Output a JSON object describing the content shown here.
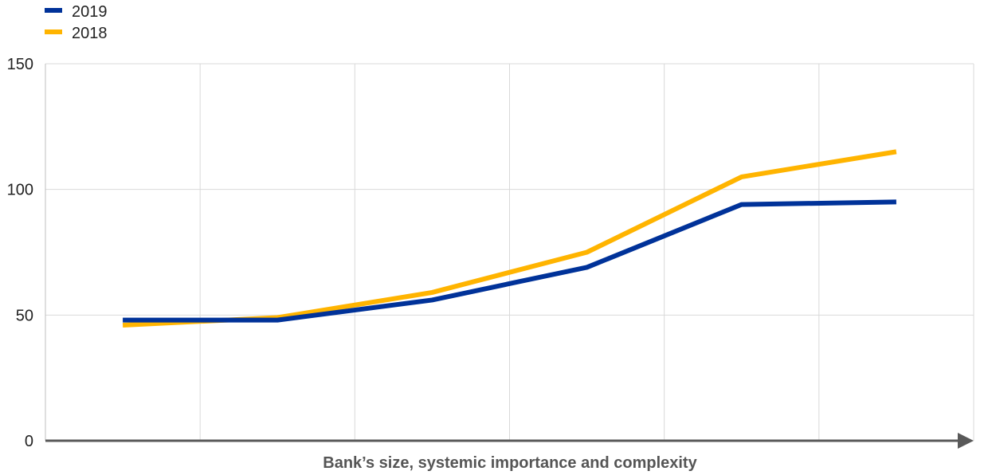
{
  "chart_data": {
    "type": "line",
    "title": "",
    "xlabel": "Bank’s size, systemic importance and complexity",
    "ylabel": "",
    "x": [
      1,
      2,
      3,
      4,
      5,
      6
    ],
    "ylim": [
      0,
      150
    ],
    "yticks": [
      "0",
      "50",
      "100",
      "150"
    ],
    "grid": true,
    "legend_position": "top-left",
    "series": [
      {
        "name": "2019",
        "color": "#003299",
        "values": [
          48,
          48,
          56,
          69,
          94,
          95
        ]
      },
      {
        "name": "2018",
        "color": "#FFB400",
        "values": [
          46,
          49,
          59,
          75,
          105,
          115
        ]
      }
    ]
  }
}
